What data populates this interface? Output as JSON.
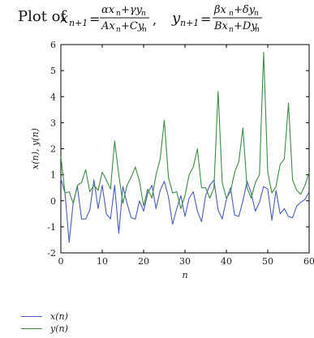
{
  "chart_data": {
    "type": "line",
    "title": "Plot of x_{n+1} = (αx_n+γy_n)/(Ax_n+Cy_n),   y_{n+1} = (βx_n+δy_n)/(Bx_n+Dy_n)",
    "title_parts": {
      "prefix": "Plot of",
      "eq1_lhs": "x",
      "eq1_lhs_sub": "n+1",
      "eq1_num": "αx",
      "eq1_num_rest": "+γy",
      "eq1_den": "Ax",
      "eq1_den_rest": "+Cy",
      "sub_n": "n",
      "sep": ",",
      "eq2_lhs": "y",
      "eq2_lhs_sub": "n+1",
      "eq2_num": "βx",
      "eq2_num_rest": "+δy",
      "eq2_den": "Bx",
      "eq2_den_rest": "+Dy"
    },
    "xlabel": "n",
    "ylabel": "x(n), y(n)",
    "xlim": [
      0,
      60
    ],
    "ylim": [
      -2,
      6
    ],
    "xticks": [
      0,
      10,
      20,
      30,
      40,
      50,
      60
    ],
    "yticks": [
      -2,
      -1,
      0,
      1,
      2,
      3,
      4,
      5,
      6
    ],
    "grid": false,
    "legend_position": "bottom-left",
    "series": [
      {
        "name": "x(n)",
        "color": "#4a5bbf",
        "x": [
          0,
          1,
          2,
          3,
          4,
          5,
          6,
          7,
          8,
          9,
          10,
          11,
          12,
          13,
          14,
          15,
          16,
          17,
          18,
          19,
          20,
          21,
          22,
          23,
          24,
          25,
          26,
          27,
          28,
          29,
          30,
          31,
          32,
          33,
          34,
          35,
          36,
          37,
          38,
          39,
          40,
          41,
          42,
          43,
          44,
          45,
          46,
          47,
          48,
          49,
          50,
          51,
          52,
          53,
          54,
          55,
          56,
          57,
          58,
          59,
          60
        ],
        "y": [
          0.85,
          0.3,
          -1.6,
          -0.05,
          0.55,
          -0.7,
          -0.7,
          -0.35,
          0.8,
          -0.3,
          0.6,
          -0.5,
          -0.7,
          0.6,
          -1.25,
          0.55,
          -0.1,
          -0.65,
          -0.7,
          0.0,
          -0.4,
          0.3,
          0.6,
          -0.3,
          0.4,
          0.75,
          0.15,
          -0.9,
          -0.3,
          0.2,
          -0.6,
          0.1,
          0.35,
          -0.4,
          -0.8,
          0.2,
          0.6,
          0.8,
          -0.35,
          -0.7,
          0.05,
          0.5,
          -0.55,
          -0.6,
          0.0,
          0.75,
          0.3,
          -0.4,
          -0.05,
          0.55,
          0.45,
          -0.75,
          0.4,
          -0.5,
          -0.3,
          -0.6,
          -0.65,
          -0.2,
          -0.05,
          0.05,
          0.35
        ]
      },
      {
        "name": "y(n)",
        "color": "#3c8c46",
        "x": [
          0,
          1,
          2,
          3,
          4,
          5,
          6,
          7,
          8,
          9,
          10,
          11,
          12,
          13,
          14,
          15,
          16,
          17,
          18,
          19,
          20,
          21,
          22,
          23,
          24,
          25,
          26,
          27,
          28,
          29,
          30,
          31,
          32,
          33,
          34,
          35,
          36,
          37,
          38,
          39,
          40,
          41,
          42,
          43,
          44,
          45,
          46,
          47,
          48,
          49,
          50,
          51,
          52,
          53,
          54,
          55,
          56,
          57,
          58,
          59,
          60
        ],
        "y": [
          1.7,
          0.3,
          0.35,
          -0.1,
          0.6,
          0.7,
          1.2,
          0.35,
          0.6,
          0.4,
          1.1,
          0.8,
          0.45,
          2.3,
          1.0,
          -0.1,
          0.6,
          0.9,
          1.3,
          0.75,
          -0.2,
          0.45,
          0.1,
          1.0,
          1.6,
          3.1,
          0.9,
          0.3,
          0.35,
          -0.3,
          0.2,
          1.0,
          1.3,
          2.0,
          0.5,
          0.5,
          0.1,
          0.5,
          4.2,
          0.7,
          0.1,
          0.35,
          1.1,
          1.5,
          2.8,
          0.5,
          0.1,
          0.7,
          1.0,
          5.7,
          1.1,
          0.3,
          0.55,
          1.4,
          1.6,
          3.75,
          0.8,
          0.4,
          0.25,
          0.6,
          1.1
        ]
      }
    ]
  }
}
